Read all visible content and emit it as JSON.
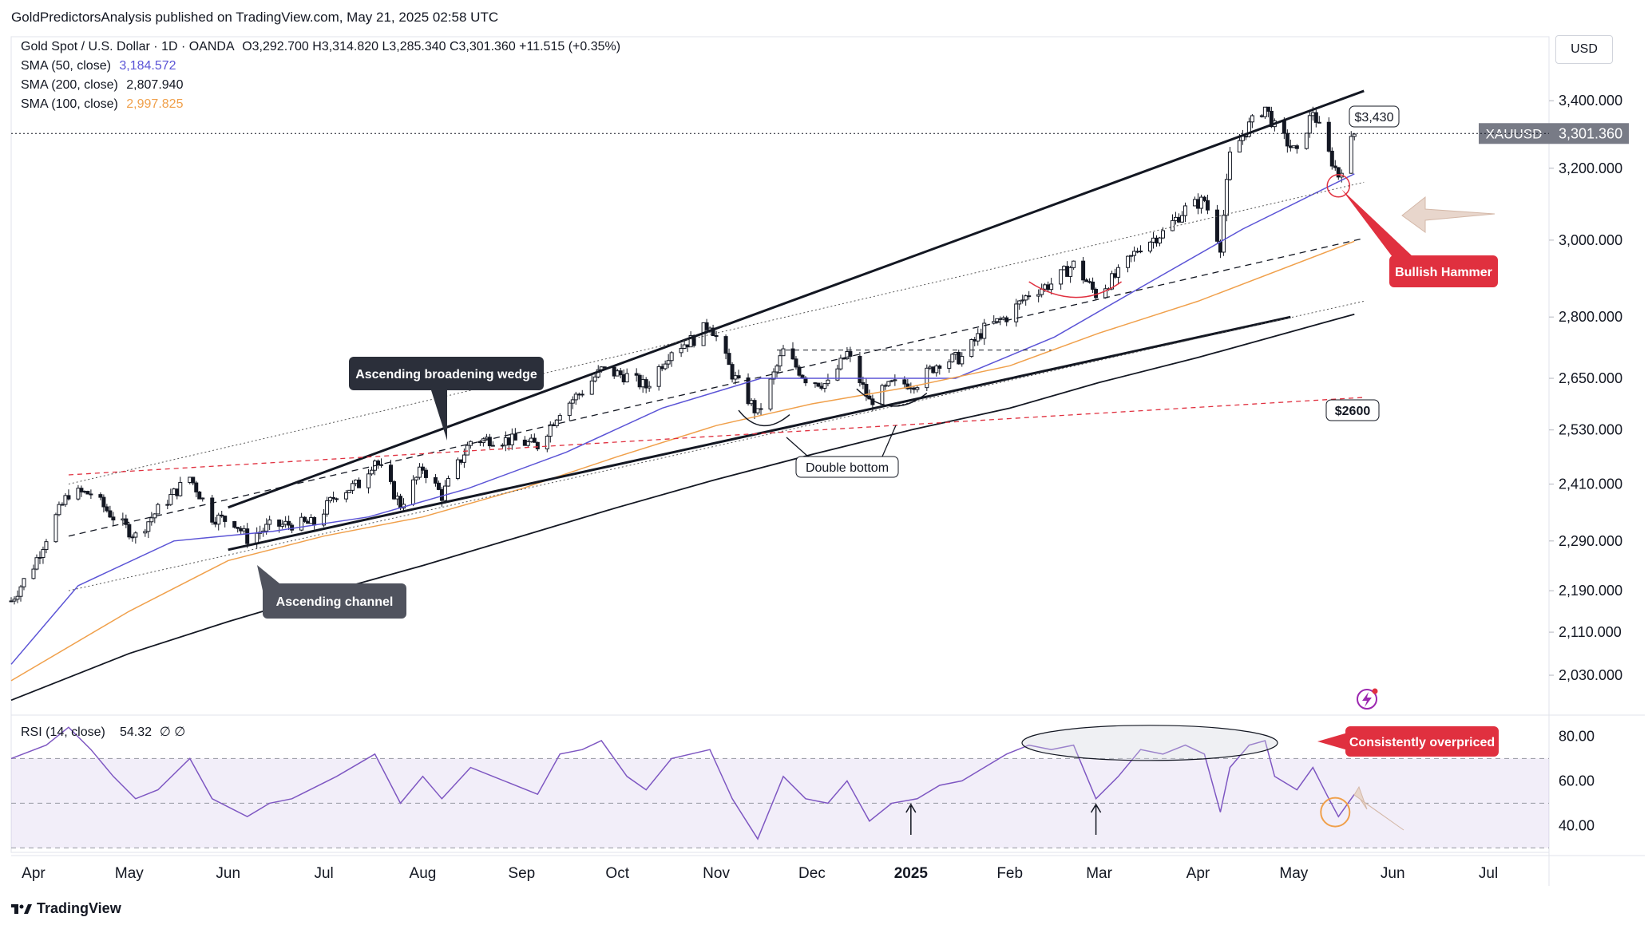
{
  "header": {
    "published": "GoldPredictorsAnalysis published on TradingView.com, May 21, 2025 02:58 UTC"
  },
  "legend": {
    "symbol": "Gold Spot / U.S. Dollar · 1D · OANDA",
    "ohlc": "O3,292.700  H3,314.820  L3,285.340  C3,301.360  +11.515 (+0.35%)",
    "sma50_label": "SMA (50, close)",
    "sma50_value": "3,184.572",
    "sma200_label": "SMA (200, close)",
    "sma200_value": "2,807.940",
    "sma100_label": "SMA (100, close)",
    "sma100_value": "2,997.825"
  },
  "currency": "USD",
  "footer": {
    "brand": "TradingView"
  },
  "colors": {
    "sma50": "#5b54d6",
    "sma100": "#f0a04b",
    "sma200": "#131722",
    "up": "#131722",
    "down": "#131722",
    "callout_dark": "#2b2f3a",
    "callout_red": "#e0303f",
    "rsi": "#7e57c2"
  },
  "chart_data": [
    {
      "type": "line",
      "title": "Gold Spot / U.S. Dollar · 1D · OANDA",
      "symbol": "XAUUSD",
      "last_price": "3,301.360",
      "scale": "log",
      "ylim": [
        1960,
        3560
      ],
      "x_range": [
        "2024-03-25",
        "2025-07-20"
      ],
      "y_ticks": [
        "3,400.000",
        "3,200.000",
        "3,000.000",
        "2,800.000",
        "2,650.000",
        "2,530.000",
        "2,410.000",
        "2,290.000",
        "2,190.000",
        "2,110.000",
        "2,030.000"
      ],
      "x_ticks": [
        {
          "label": "Apr",
          "date": "2024-04-01"
        },
        {
          "label": "May",
          "date": "2024-05-01"
        },
        {
          "label": "Jun",
          "date": "2024-06-01"
        },
        {
          "label": "Jul",
          "date": "2024-07-01"
        },
        {
          "label": "Aug",
          "date": "2024-08-01"
        },
        {
          "label": "Sep",
          "date": "2024-09-01"
        },
        {
          "label": "Oct",
          "date": "2024-10-01"
        },
        {
          "label": "Nov",
          "date": "2024-11-01"
        },
        {
          "label": "Dec",
          "date": "2024-12-01"
        },
        {
          "label": "2025",
          "date": "2025-01-01"
        },
        {
          "label": "Feb",
          "date": "2025-02-01"
        },
        {
          "label": "Mar",
          "date": "2025-03-01"
        },
        {
          "label": "Apr",
          "date": "2025-04-01"
        },
        {
          "label": "May",
          "date": "2025-05-01"
        },
        {
          "label": "Jun",
          "date": "2025-06-01"
        },
        {
          "label": "Jul",
          "date": "2025-07-01"
        }
      ],
      "series": [
        {
          "name": "XAUUSD",
          "points": [
            [
              "2024-03-25",
              2170
            ],
            [
              "2024-04-01",
              2240
            ],
            [
              "2024-04-08",
              2340
            ],
            [
              "2024-04-12",
              2390
            ],
            [
              "2024-04-19",
              2390
            ],
            [
              "2024-04-26",
              2340
            ],
            [
              "2024-05-03",
              2300
            ],
            [
              "2024-05-10",
              2355
            ],
            [
              "2024-05-20",
              2425
            ],
            [
              "2024-05-27",
              2340
            ],
            [
              "2024-06-03",
              2330
            ],
            [
              "2024-06-07",
              2295
            ],
            [
              "2024-06-14",
              2320
            ],
            [
              "2024-06-21",
              2325
            ],
            [
              "2024-06-28",
              2326
            ],
            [
              "2024-07-05",
              2390
            ],
            [
              "2024-07-12",
              2410
            ],
            [
              "2024-07-17",
              2465
            ],
            [
              "2024-07-25",
              2365
            ],
            [
              "2024-08-01",
              2445
            ],
            [
              "2024-08-07",
              2385
            ],
            [
              "2024-08-16",
              2505
            ],
            [
              "2024-08-23",
              2510
            ],
            [
              "2024-08-30",
              2505
            ],
            [
              "2024-09-06",
              2495
            ],
            [
              "2024-09-13",
              2575
            ],
            [
              "2024-09-20",
              2620
            ],
            [
              "2024-09-26",
              2670
            ],
            [
              "2024-10-04",
              2655
            ],
            [
              "2024-10-10",
              2630
            ],
            [
              "2024-10-18",
              2720
            ],
            [
              "2024-10-25",
              2745
            ],
            [
              "2024-10-30",
              2785
            ],
            [
              "2024-11-06",
              2660
            ],
            [
              "2024-11-14",
              2565
            ],
            [
              "2024-11-22",
              2715
            ],
            [
              "2024-11-29",
              2650
            ],
            [
              "2024-12-06",
              2635
            ],
            [
              "2024-12-12",
              2710
            ],
            [
              "2024-12-19",
              2595
            ],
            [
              "2024-12-26",
              2635
            ],
            [
              "2025-01-03",
              2640
            ],
            [
              "2025-01-10",
              2690
            ],
            [
              "2025-01-17",
              2700
            ],
            [
              "2025-01-24",
              2770
            ],
            [
              "2025-01-31",
              2800
            ],
            [
              "2025-02-07",
              2860
            ],
            [
              "2025-02-14",
              2885
            ],
            [
              "2025-02-21",
              2935
            ],
            [
              "2025-02-28",
              2858
            ],
            [
              "2025-03-07",
              2910
            ],
            [
              "2025-03-14",
              2985
            ],
            [
              "2025-03-21",
              3020
            ],
            [
              "2025-03-28",
              3085
            ],
            [
              "2025-04-03",
              3110
            ],
            [
              "2025-04-08",
              2985
            ],
            [
              "2025-04-11",
              3235
            ],
            [
              "2025-04-17",
              3325
            ],
            [
              "2025-04-22",
              3380
            ],
            [
              "2025-04-25",
              3320
            ],
            [
              "2025-05-02",
              3240
            ],
            [
              "2025-05-07",
              3370
            ],
            [
              "2025-05-12",
              3240
            ],
            [
              "2025-05-15",
              3180
            ],
            [
              "2025-05-20",
              3301
            ]
          ]
        },
        {
          "name": "SMA (50, close)",
          "points": [
            [
              "2024-03-25",
              2050
            ],
            [
              "2024-04-15",
              2200
            ],
            [
              "2024-05-15",
              2290
            ],
            [
              "2024-06-15",
              2310
            ],
            [
              "2024-07-15",
              2340
            ],
            [
              "2024-08-15",
              2400
            ],
            [
              "2024-09-15",
              2480
            ],
            [
              "2024-10-15",
              2580
            ],
            [
              "2024-11-15",
              2650
            ],
            [
              "2024-12-15",
              2650
            ],
            [
              "2025-01-15",
              2650
            ],
            [
              "2025-02-15",
              2750
            ],
            [
              "2025-03-15",
              2880
            ],
            [
              "2025-04-15",
              3030
            ],
            [
              "2025-05-20",
              3184
            ]
          ]
        },
        {
          "name": "SMA (100, close)",
          "points": [
            [
              "2024-03-25",
              2020
            ],
            [
              "2024-05-01",
              2150
            ],
            [
              "2024-06-01",
              2250
            ],
            [
              "2024-07-01",
              2300
            ],
            [
              "2024-08-01",
              2340
            ],
            [
              "2024-09-01",
              2400
            ],
            [
              "2024-10-01",
              2470
            ],
            [
              "2024-11-01",
              2540
            ],
            [
              "2024-12-01",
              2590
            ],
            [
              "2025-01-01",
              2630
            ],
            [
              "2025-02-01",
              2680
            ],
            [
              "2025-03-01",
              2760
            ],
            [
              "2025-04-01",
              2840
            ],
            [
              "2025-05-20",
              2997
            ]
          ]
        },
        {
          "name": "SMA (200, close)",
          "points": [
            [
              "2024-03-25",
              1985
            ],
            [
              "2024-05-01",
              2070
            ],
            [
              "2024-06-01",
              2130
            ],
            [
              "2024-07-01",
              2185
            ],
            [
              "2024-08-01",
              2240
            ],
            [
              "2024-09-01",
              2300
            ],
            [
              "2024-10-01",
              2360
            ],
            [
              "2024-11-01",
              2420
            ],
            [
              "2024-12-01",
              2475
            ],
            [
              "2025-01-01",
              2530
            ],
            [
              "2025-02-01",
              2580
            ],
            [
              "2025-03-01",
              2640
            ],
            [
              "2025-04-01",
              2700
            ],
            [
              "2025-05-20",
              2807
            ]
          ]
        }
      ],
      "annotations": [
        {
          "text": "Ascending broadening wedge"
        },
        {
          "text": "Ascending channel"
        },
        {
          "text": "Double bottom"
        },
        {
          "text": "$3,430"
        },
        {
          "text": "$2600"
        },
        {
          "text": "Bullish Hammer"
        }
      ]
    },
    {
      "type": "line",
      "title": "RSI (14, close)",
      "value_text": "54.32",
      "extras": "∅  ∅",
      "ylim": [
        28,
        88
      ],
      "y_ticks": [
        "80.00",
        "60.00",
        "40.00"
      ],
      "bands": [
        70,
        50,
        30
      ],
      "series": [
        {
          "name": "RSI",
          "points": [
            [
              "2024-03-25",
              70
            ],
            [
              "2024-04-05",
              76
            ],
            [
              "2024-04-12",
              84
            ],
            [
              "2024-04-19",
              74
            ],
            [
              "2024-04-26",
              62
            ],
            [
              "2024-05-03",
              52
            ],
            [
              "2024-05-10",
              56
            ],
            [
              "2024-05-20",
              70
            ],
            [
              "2024-05-27",
              52
            ],
            [
              "2024-06-07",
              44
            ],
            [
              "2024-06-14",
              50
            ],
            [
              "2024-06-21",
              52
            ],
            [
              "2024-07-05",
              62
            ],
            [
              "2024-07-17",
              72
            ],
            [
              "2024-07-25",
              50
            ],
            [
              "2024-08-01",
              62
            ],
            [
              "2024-08-07",
              52
            ],
            [
              "2024-08-16",
              66
            ],
            [
              "2024-08-23",
              62
            ],
            [
              "2024-09-06",
              54
            ],
            [
              "2024-09-13",
              72
            ],
            [
              "2024-09-20",
              74
            ],
            [
              "2024-09-26",
              78
            ],
            [
              "2024-10-04",
              62
            ],
            [
              "2024-10-10",
              56
            ],
            [
              "2024-10-18",
              70
            ],
            [
              "2024-10-30",
              74
            ],
            [
              "2024-11-06",
              52
            ],
            [
              "2024-11-14",
              34
            ],
            [
              "2024-11-22",
              62
            ],
            [
              "2024-11-29",
              52
            ],
            [
              "2024-12-06",
              50
            ],
            [
              "2024-12-12",
              60
            ],
            [
              "2024-12-19",
              42
            ],
            [
              "2024-12-26",
              50
            ],
            [
              "2025-01-03",
              52
            ],
            [
              "2025-01-10",
              58
            ],
            [
              "2025-01-17",
              60
            ],
            [
              "2025-01-24",
              66
            ],
            [
              "2025-01-31",
              72
            ],
            [
              "2025-02-07",
              76
            ],
            [
              "2025-02-14",
              74
            ],
            [
              "2025-02-21",
              76
            ],
            [
              "2025-02-28",
              52
            ],
            [
              "2025-03-07",
              62
            ],
            [
              "2025-03-14",
              74
            ],
            [
              "2025-03-21",
              72
            ],
            [
              "2025-03-28",
              76
            ],
            [
              "2025-04-03",
              72
            ],
            [
              "2025-04-08",
              46
            ],
            [
              "2025-04-11",
              66
            ],
            [
              "2025-04-17",
              76
            ],
            [
              "2025-04-22",
              78
            ],
            [
              "2025-04-25",
              62
            ],
            [
              "2025-05-02",
              56
            ],
            [
              "2025-05-07",
              66
            ],
            [
              "2025-05-12",
              52
            ],
            [
              "2025-05-15",
              44
            ],
            [
              "2025-05-20",
              54
            ]
          ]
        }
      ],
      "annotations": [
        {
          "text": "Consistently overpriced"
        }
      ]
    }
  ]
}
